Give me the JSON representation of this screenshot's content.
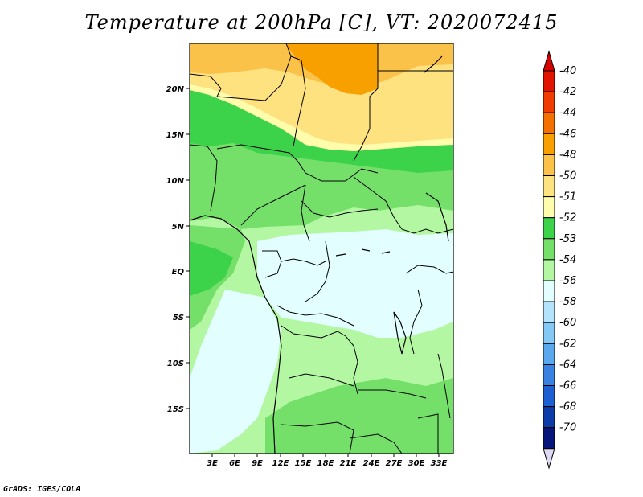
{
  "title": "Temperature at 200hPa [C], VT: 2020072415",
  "footer": "GrADS: IGES/COLA",
  "map": {
    "lat_labels": [
      "20N",
      "15N",
      "10N",
      "5N",
      "EQ",
      "5S",
      "10S",
      "15S"
    ],
    "lon_labels": [
      "3E",
      "6E",
      "9E",
      "12E",
      "15E",
      "18E",
      "21E",
      "24E",
      "27E",
      "30E",
      "33E"
    ]
  },
  "colorbar": {
    "levels": [
      {
        "label": "-40",
        "color": "#e11400"
      },
      {
        "label": "-42",
        "color": "#f03c00"
      },
      {
        "label": "-44",
        "color": "#f47000"
      },
      {
        "label": "-46",
        "color": "#f7a000"
      },
      {
        "label": "-48",
        "color": "#fbc24a"
      },
      {
        "label": "-50",
        "color": "#fde27f"
      },
      {
        "label": "-51",
        "color": "#fffcab"
      },
      {
        "label": "-52",
        "color": "#3cd24a"
      },
      {
        "label": "-53",
        "color": "#74e06a"
      },
      {
        "label": "-54",
        "color": "#b3f7a3"
      },
      {
        "label": "-56",
        "color": "#e2fefe"
      },
      {
        "label": "-58",
        "color": "#b3e4fb"
      },
      {
        "label": "-60",
        "color": "#84c8f6"
      },
      {
        "label": "-62",
        "color": "#5aa8ee"
      },
      {
        "label": "-64",
        "color": "#3a82e2"
      },
      {
        "label": "-66",
        "color": "#1e60d2"
      },
      {
        "label": "-68",
        "color": "#0c3ca8"
      },
      {
        "label": "-70",
        "color": "#06167a"
      }
    ],
    "top_color": "#d90000",
    "bottom_color": "#dcd8f5"
  }
}
